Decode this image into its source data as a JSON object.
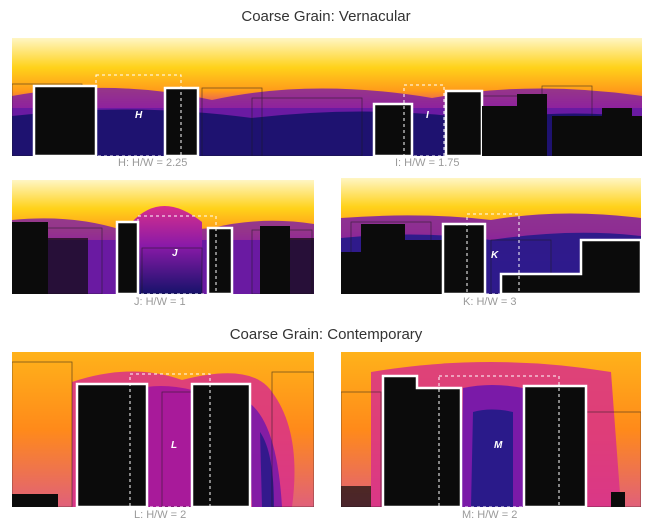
{
  "sections": [
    {
      "title": "Coarse Grain: Vernacular"
    },
    {
      "title": "Coarse Grain: Contemporary"
    }
  ],
  "panels": [
    {
      "id": "H",
      "label": "H",
      "caption": "H: H/W = 2.25"
    },
    {
      "id": "I",
      "label": "I",
      "caption": "I: H/W = 1.75"
    },
    {
      "id": "J",
      "label": "J",
      "caption": "J: H/W = 1"
    },
    {
      "id": "K",
      "label": "K",
      "caption": "K: H/W = 3"
    },
    {
      "id": "L",
      "label": "L",
      "caption": "L: H/W = 2"
    },
    {
      "id": "M",
      "label": "M",
      "caption": "M: H/W = 2"
    }
  ],
  "colors": {
    "sky_light": "#fff6c4",
    "yellow": "#ffd21a",
    "orange": "#ff9a1a",
    "magenta": "#d8308a",
    "purple": "#7a1aa8",
    "deep_blue": "#2a1a8a",
    "navy": "#16126a",
    "building": "#0b0b0b",
    "outline": "#ffffff"
  }
}
